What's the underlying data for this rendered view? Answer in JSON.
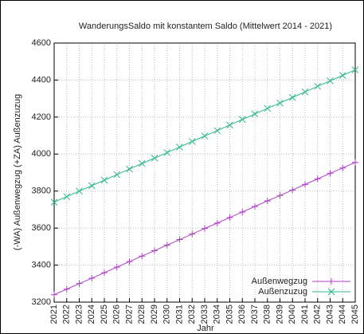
{
  "chart_data": {
    "type": "line",
    "title": "WanderungsSaldo mit konstantem Saldo (Mittelwert 2014 - 2021)",
    "x_label": "Jahr",
    "y_label": "(-WA) Außenwegzug (+ZA) Außenzuzug",
    "x": [
      2021,
      2022,
      2023,
      2024,
      2025,
      2026,
      2027,
      2028,
      2029,
      2030,
      2031,
      2032,
      2033,
      2034,
      2035,
      2036,
      2037,
      2038,
      2039,
      2040,
      2041,
      2042,
      2043,
      2044,
      2045
    ],
    "xlim": [
      2021,
      2045
    ],
    "xticks": [
      2021,
      2022,
      2023,
      2024,
      2025,
      2026,
      2027,
      2028,
      2029,
      2030,
      2031,
      2032,
      2033,
      2034,
      2035,
      2036,
      2037,
      2038,
      2039,
      2040,
      2041,
      2042,
      2043,
      2044,
      2045
    ],
    "ylim": [
      3200,
      4600
    ],
    "yticks": [
      3200,
      3400,
      3600,
      3800,
      4000,
      4200,
      4400,
      4600
    ],
    "grid": true,
    "legend": "lower right",
    "series": [
      {
        "name": "Außenwegzug",
        "color": "#b040c8",
        "marker": "+",
        "values": [
          3240,
          3270,
          3300,
          3329,
          3359,
          3389,
          3419,
          3449,
          3478,
          3508,
          3538,
          3568,
          3598,
          3627,
          3657,
          3687,
          3717,
          3747,
          3776,
          3806,
          3836,
          3866,
          3896,
          3925,
          3955
        ]
      },
      {
        "name": "Außenzuzug",
        "color": "#30b890",
        "marker": "x",
        "values": [
          3740,
          3770,
          3800,
          3829,
          3859,
          3889,
          3919,
          3949,
          3978,
          4008,
          4038,
          4068,
          4098,
          4127,
          4157,
          4187,
          4217,
          4247,
          4276,
          4306,
          4336,
          4366,
          4396,
          4425,
          4455
        ]
      }
    ]
  }
}
